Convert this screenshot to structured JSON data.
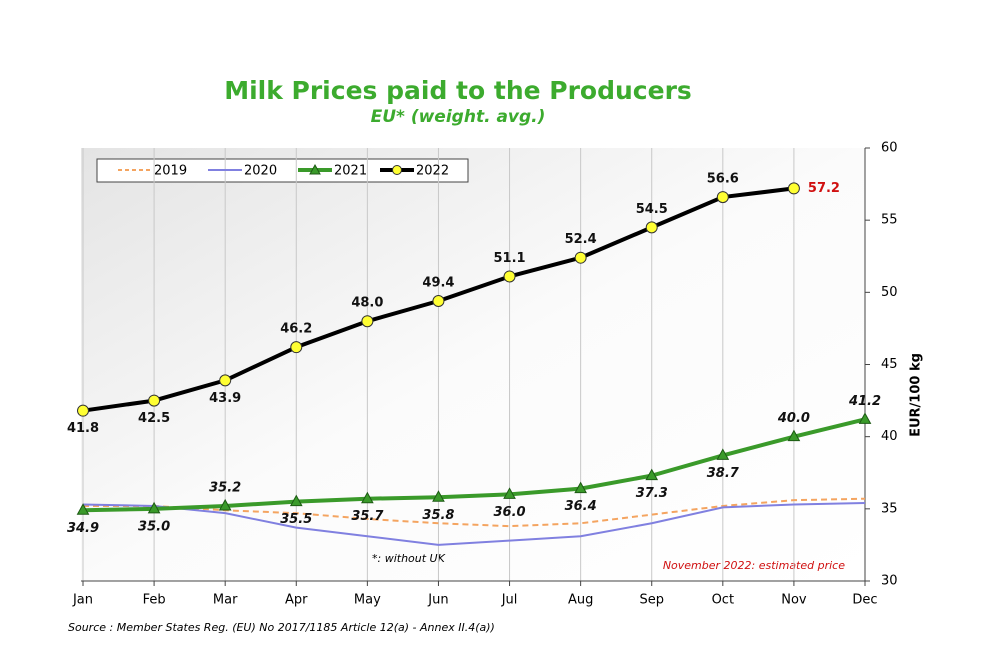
{
  "chart_data": {
    "type": "line",
    "title": "Milk Prices paid to the Producers",
    "subtitle": "EU* (weight. avg.)",
    "y_label": "EUR/100 kg",
    "annotations": [
      "*: without UK",
      "November 2022: estimated price"
    ],
    "source": "Source : Member States Reg. (EU) No 2017/1185 Article 12(a) - Annex II.4(a))",
    "categories": [
      "Jan",
      "Feb",
      "Mar",
      "Apr",
      "May",
      "Jun",
      "Jul",
      "Aug",
      "Sep",
      "Oct",
      "Nov",
      "Dec"
    ],
    "series": [
      {
        "name": "2019",
        "color": "#f4a460",
        "dashed": true,
        "values": [
          35.2,
          35.2,
          34.9,
          34.7,
          34.3,
          34.0,
          33.8,
          34.0,
          34.6,
          35.2,
          35.6,
          35.7
        ]
      },
      {
        "name": "2020",
        "color": "#8080e0",
        "values": [
          35.3,
          35.2,
          34.7,
          33.7,
          33.1,
          32.5,
          32.8,
          33.1,
          34.0,
          35.1,
          35.3,
          35.4
        ]
      },
      {
        "name": "2021",
        "color": "#3a9a2a",
        "marker": "triangle",
        "values": [
          34.9,
          35.0,
          35.2,
          35.5,
          35.7,
          35.8,
          36.0,
          36.4,
          37.3,
          38.7,
          40.0,
          41.2
        ],
        "value_labels": [
          "34.9",
          "35.0",
          "35.2",
          "35.5",
          "35.7",
          "35.8",
          "36.0",
          "36.4",
          "37.3",
          "38.7",
          "40.0",
          "41.2"
        ]
      },
      {
        "name": "2022",
        "color": "#000000",
        "marker": "circle",
        "values": [
          41.8,
          42.5,
          43.9,
          46.2,
          48.0,
          49.4,
          51.1,
          52.4,
          54.5,
          56.6,
          57.2,
          null
        ],
        "value_labels": [
          "41.8",
          "42.5",
          "43.9",
          "46.2",
          "48.0",
          "49.4",
          "51.1",
          "52.4",
          "54.5",
          "56.6",
          "57.2",
          null
        ]
      }
    ],
    "ylim": [
      30,
      60
    ],
    "yticks": [
      30,
      35,
      40,
      45,
      50,
      55,
      60
    ],
    "grid": true,
    "legend": "top-left"
  }
}
